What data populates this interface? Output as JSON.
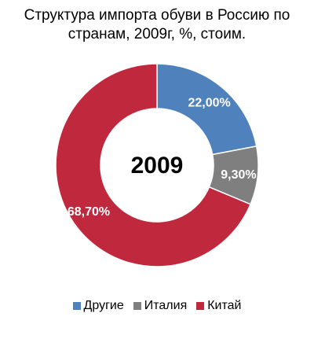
{
  "chart_data": {
    "type": "pie",
    "title": "Структура импорта обуви в Россию по странам, 2009г, %, стоим.",
    "title_lines": [
      "Структура импорта обуви в Россию по",
      "странам, 2009г, %, стоим."
    ],
    "center_label": "2009",
    "donut": true,
    "legend": "bottom",
    "slices": [
      {
        "name": "Другие",
        "value": 22.0,
        "label": "22,00%",
        "color": "#4f81bd"
      },
      {
        "name": "Италия",
        "value": 9.3,
        "label": "9,30%",
        "color": "#7f7f7f"
      },
      {
        "name": "Китай",
        "value": 68.7,
        "label": "68,70%",
        "color": "#c0283d"
      }
    ]
  }
}
